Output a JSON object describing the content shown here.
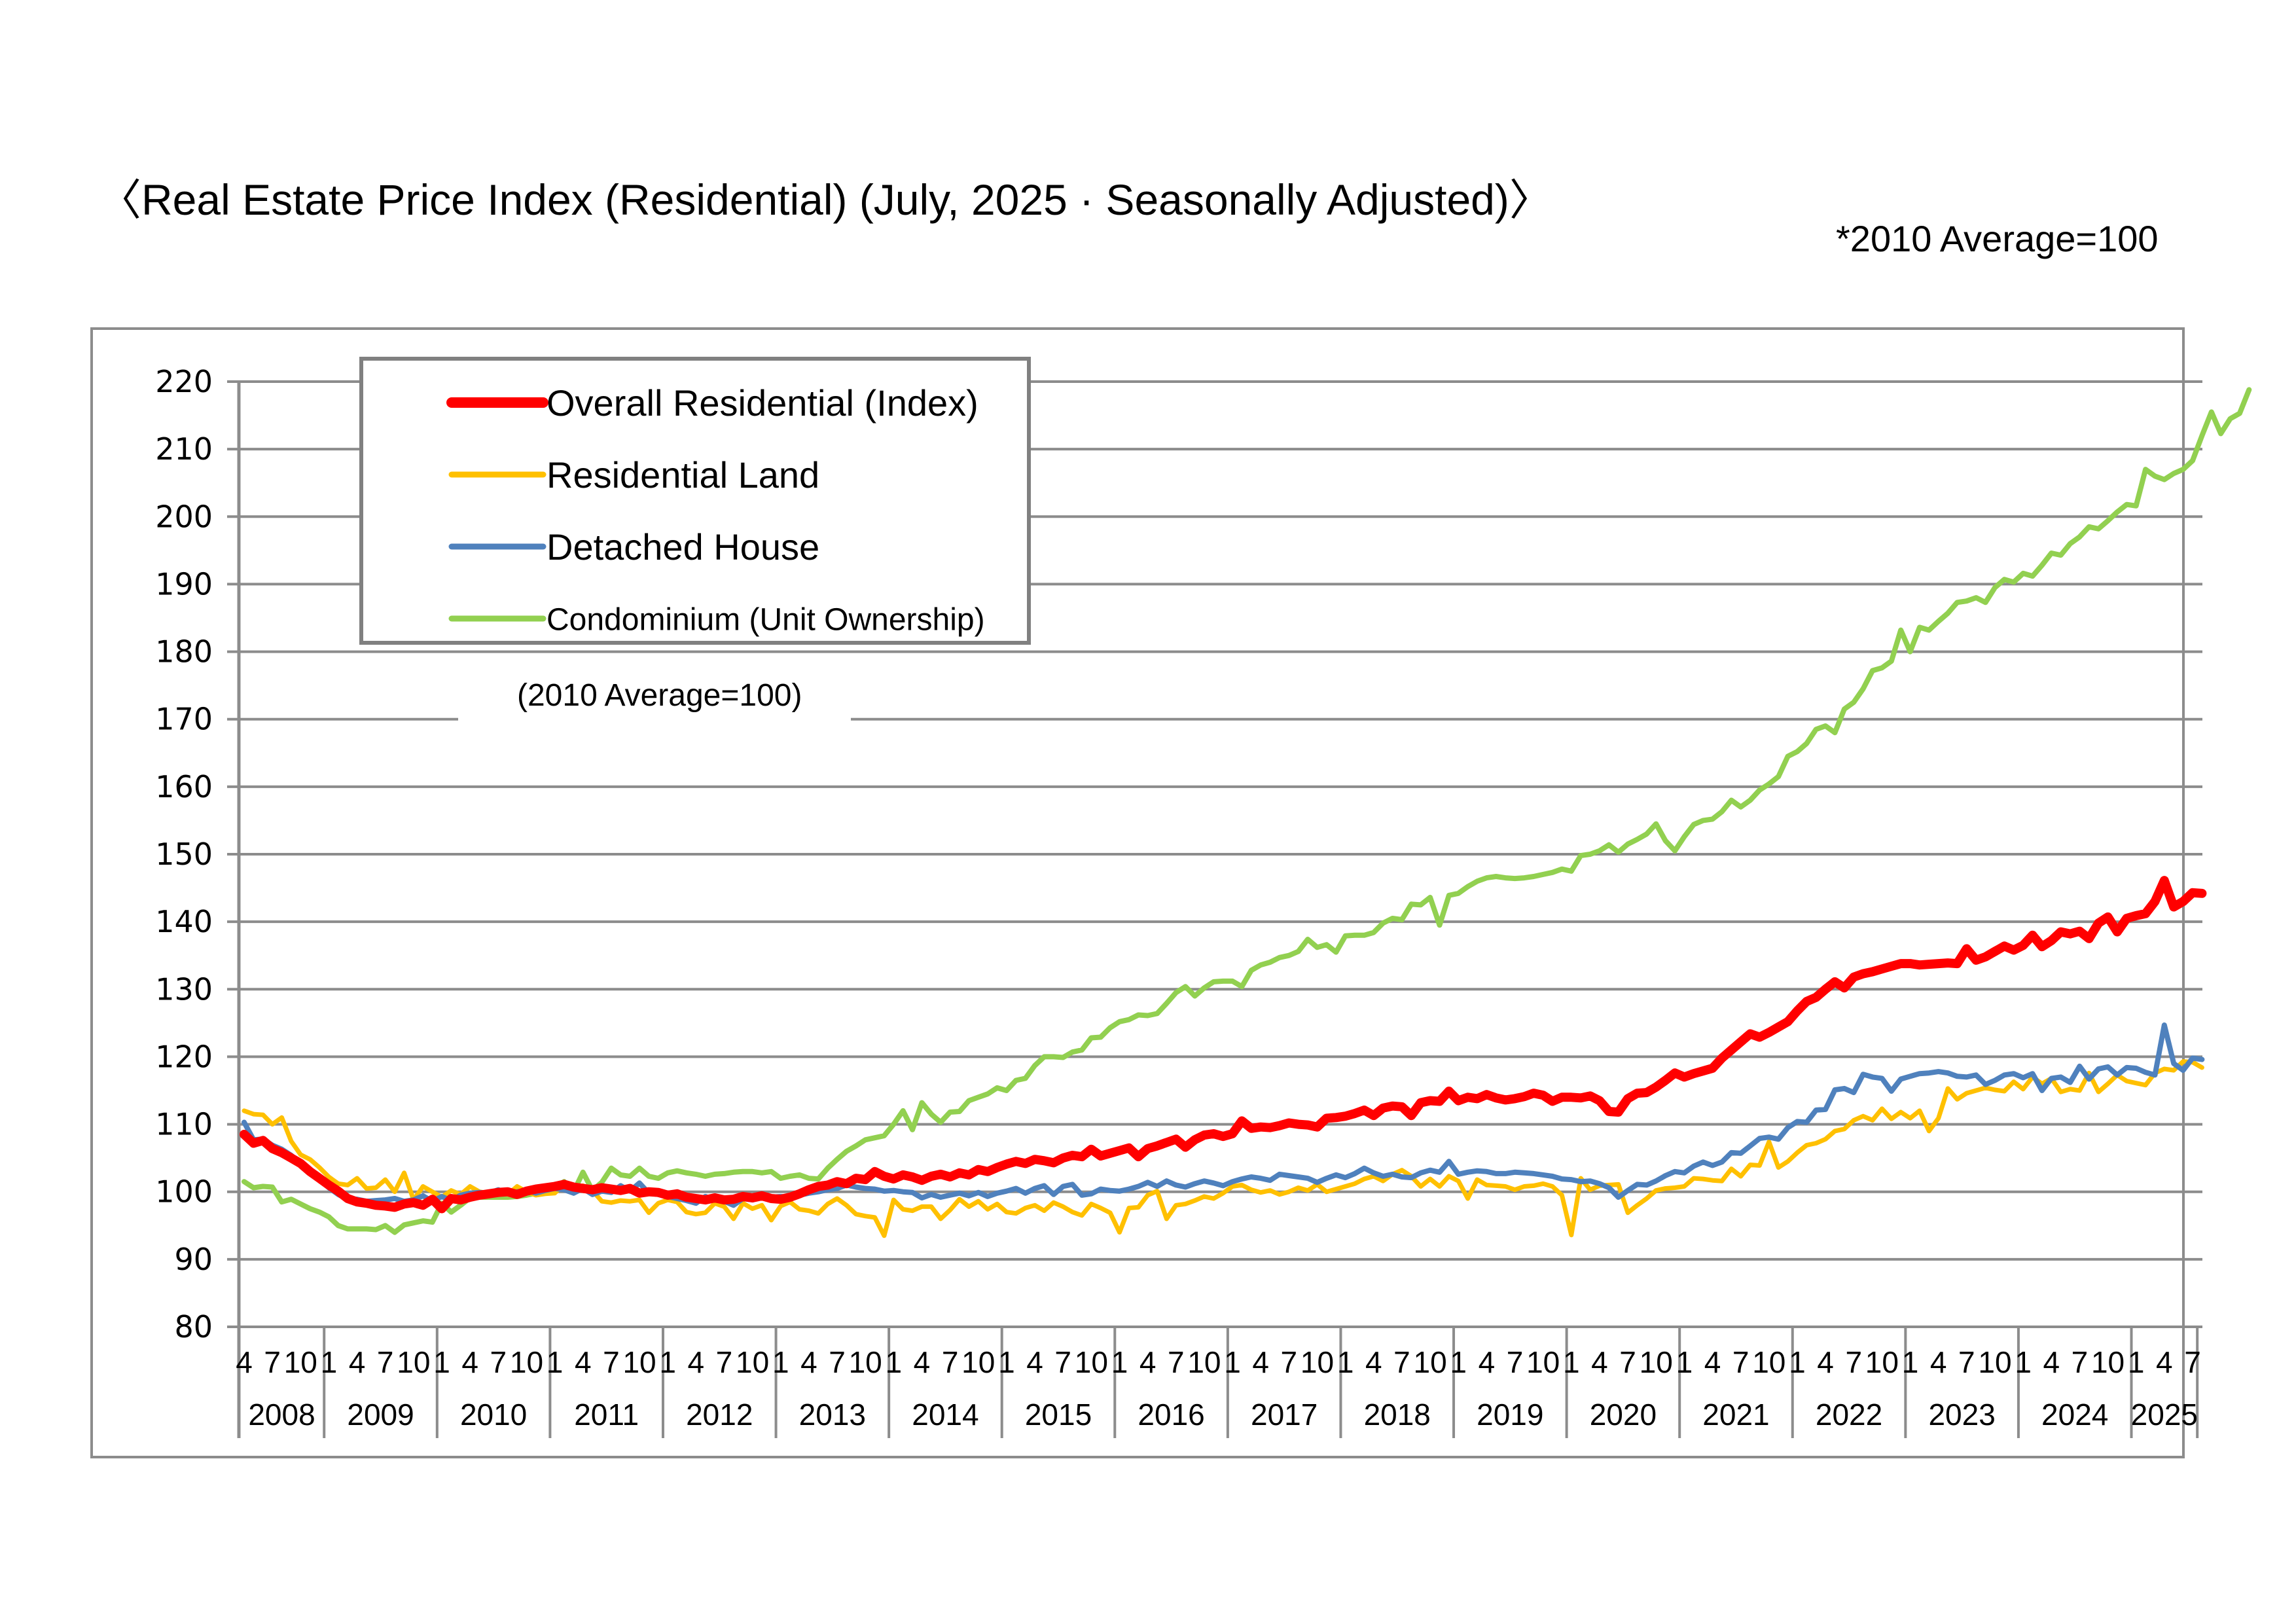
{
  "page": {
    "title": "〈Real Estate Price Index (Residential) (July, 2025 · Seasonally Adjusted)〉",
    "note": "*2010 Average=100"
  },
  "chart_data": {
    "type": "line",
    "title": "Real Estate Price Index (Residential) (July, 2025 · Seasonally Adjusted)",
    "subtitle": "*2010 Average=100",
    "annotation": "(2010 Average=100)",
    "xlabel": "",
    "ylabel": "",
    "ylim": [
      80,
      220
    ],
    "yticks": [
      80,
      90,
      100,
      110,
      120,
      130,
      140,
      150,
      160,
      170,
      180,
      190,
      200,
      210,
      220
    ],
    "grid": true,
    "legend_position": "top-left",
    "x_start": "2008-04",
    "x_end": "2025-07",
    "x_frequency": "monthly",
    "month_tick_labels": [
      "1",
      "4",
      "7",
      "10"
    ],
    "years": [
      "2008",
      "2009",
      "2010",
      "2011",
      "2012",
      "2013",
      "2014",
      "2015",
      "2016",
      "2017",
      "2018",
      "2019",
      "2020",
      "2021",
      "2022",
      "2023",
      "2024",
      "2025"
    ],
    "series": [
      {
        "name": "Overall Residential (Index)",
        "color": "#ff0000",
        "values": [
          108.5,
          107.2,
          107.6,
          106.4,
          105.8,
          105.0,
          104.2,
          103.0,
          102.0,
          101.0,
          100.1,
          99.0,
          98.5,
          98.3,
          98.0,
          97.9,
          97.7,
          98.2,
          98.4,
          98.0,
          98.9,
          97.5,
          99.0,
          98.8,
          99.2,
          99.5,
          99.7,
          99.9,
          100.0,
          99.6,
          100.1,
          100.4,
          100.6,
          100.8,
          101.1,
          100.7,
          100.5,
          100.3,
          100.6,
          100.4,
          100.2,
          100.5,
          99.8,
          100.0,
          99.9,
          99.5,
          99.7,
          99.2,
          99.0,
          98.8,
          99.1,
          98.8,
          98.9,
          99.3,
          99.1,
          99.4,
          99.0,
          98.9,
          99.2,
          99.7,
          100.3,
          100.8,
          101.0,
          101.5,
          101.2,
          102.0,
          101.8,
          103.0,
          102.3,
          101.9,
          102.5,
          102.2,
          101.7,
          102.3,
          102.6,
          102.2,
          102.8,
          102.5,
          103.3,
          103.0,
          103.6,
          104.1,
          104.5,
          104.2,
          104.8,
          104.6,
          104.3,
          105.0,
          105.4,
          105.2,
          106.3,
          105.3,
          105.7,
          106.1,
          106.5,
          105.2,
          106.4,
          106.8,
          107.3,
          107.8,
          106.6,
          107.7,
          108.4,
          108.6,
          108.2,
          108.6,
          110.5,
          109.4,
          109.6,
          109.5,
          109.8,
          110.2,
          110.0,
          109.9,
          109.6,
          110.9,
          111.0,
          111.2,
          111.6,
          112.1,
          111.3,
          112.4,
          112.7,
          112.6,
          111.3,
          113.2,
          113.5,
          113.4,
          114.9,
          113.5,
          114.0,
          113.8,
          114.4,
          113.9,
          113.6,
          113.8,
          114.1,
          114.6,
          114.3,
          113.4,
          114.0,
          114.0,
          113.9,
          114.2,
          113.5,
          111.9,
          111.8,
          113.8,
          114.6,
          114.7,
          115.5,
          116.5,
          117.6,
          117.0,
          117.5,
          117.9,
          118.3,
          119.8,
          121.0,
          122.2,
          123.4,
          122.9,
          123.6,
          124.4,
          125.2,
          126.8,
          128.2,
          128.8,
          130.0,
          131.1,
          130.2,
          131.8,
          132.3,
          132.6,
          133.0,
          133.4,
          133.8,
          133.8,
          133.6,
          133.7,
          133.8,
          133.9,
          133.8,
          136.0,
          134.3,
          134.8,
          135.6,
          136.4,
          135.8,
          136.5,
          138.0,
          136.3,
          137.2,
          138.5,
          138.2,
          138.6,
          137.5,
          139.8,
          140.7,
          138.5,
          140.5,
          140.9,
          141.2,
          143.0,
          146.1,
          142.2,
          143.0,
          144.3,
          144.2
        ]
      },
      {
        "name": "Residential Land",
        "color": "#ffc000",
        "values": [
          112.0,
          111.5,
          111.4,
          110.0,
          111.0,
          107.5,
          105.5,
          104.8,
          103.6,
          102.2,
          101.2,
          101.0,
          102.0,
          100.5,
          100.6,
          101.8,
          100.0,
          102.8,
          98.8,
          100.8,
          100.0,
          99.2,
          100.2,
          99.6,
          100.8,
          100.0,
          99.8,
          100.2,
          99.6,
          100.8,
          100.0,
          99.5,
          99.7,
          99.8,
          101.2,
          100.6,
          100.9,
          100.2,
          98.6,
          98.4,
          98.7,
          98.6,
          98.8,
          96.9,
          98.3,
          98.8,
          98.5,
          97.0,
          96.7,
          96.9,
          98.3,
          97.8,
          96.0,
          98.3,
          97.5,
          98.0,
          95.8,
          97.9,
          98.5,
          97.4,
          97.2,
          96.8,
          98.2,
          99.0,
          98.0,
          96.7,
          96.4,
          96.2,
          93.5,
          98.8,
          97.4,
          97.2,
          97.8,
          97.8,
          96.0,
          97.3,
          98.9,
          97.8,
          98.6,
          97.4,
          98.2,
          97.0,
          96.8,
          97.6,
          98.0,
          97.2,
          98.4,
          97.8,
          97.0,
          96.5,
          98.2,
          97.6,
          96.9,
          94.0,
          97.6,
          97.7,
          99.5,
          100.1,
          96.0,
          98.0,
          98.2,
          98.7,
          99.3,
          99.0,
          99.8,
          100.8,
          101.0,
          100.3,
          99.9,
          100.2,
          99.6,
          100.0,
          100.6,
          100.2,
          101.1,
          100.0,
          100.4,
          100.8,
          101.2,
          101.9,
          102.3,
          101.6,
          102.6,
          103.2,
          102.3,
          100.8,
          101.9,
          100.8,
          102.3,
          101.6,
          99.0,
          101.8,
          101.0,
          100.9,
          100.8,
          100.3,
          100.8,
          100.9,
          101.2,
          100.8,
          99.5,
          93.6,
          102.0,
          100.3,
          100.9,
          101.0,
          101.1,
          96.9,
          98.0,
          99.0,
          100.2,
          100.5,
          100.6,
          100.8,
          102.0,
          101.9,
          101.7,
          101.6,
          103.4,
          102.3,
          104.0,
          103.9,
          107.4,
          103.6,
          104.5,
          105.8,
          106.9,
          107.2,
          107.8,
          109.0,
          109.3,
          110.6,
          111.2,
          110.6,
          112.3,
          110.8,
          111.8,
          110.9,
          112.0,
          109.0,
          110.9,
          115.3,
          113.7,
          114.6,
          115.0,
          115.4,
          115.1,
          114.9,
          116.3,
          115.2,
          117.0,
          116.0,
          116.8,
          114.8,
          115.2,
          115.0,
          117.6,
          114.8,
          116.0,
          117.3,
          116.4,
          116.1,
          115.8,
          117.6,
          118.2,
          118.0,
          119.3,
          119.2,
          118.4
        ]
      },
      {
        "name": "Detached House",
        "color": "#4f81bd",
        "values": [
          110.3,
          107.7,
          107.8,
          106.9,
          106.3,
          105.4,
          104.2,
          103.0,
          102.0,
          100.6,
          99.6,
          98.9,
          98.9,
          98.6,
          98.7,
          98.8,
          99.0,
          98.6,
          98.8,
          99.4,
          98.6,
          99.3,
          98.7,
          99.5,
          99.8,
          99.9,
          99.8,
          100.3,
          99.7,
          100.0,
          100.2,
          99.8,
          100.2,
          100.5,
          100.3,
          99.8,
          100.5,
          99.6,
          100.1,
          99.9,
          100.9,
          100.1,
          101.3,
          99.8,
          99.6,
          99.3,
          99.0,
          98.7,
          98.3,
          99.3,
          98.8,
          98.6,
          98.0,
          99.0,
          98.8,
          99.6,
          99.2,
          99.3,
          99.2,
          99.5,
          99.8,
          100.0,
          100.3,
          100.5,
          101.0,
          100.7,
          100.5,
          100.4,
          100.1,
          100.2,
          100.0,
          99.9,
          99.1,
          99.6,
          99.2,
          99.5,
          99.8,
          99.4,
          99.9,
          99.3,
          99.8,
          100.1,
          100.5,
          99.8,
          100.5,
          100.9,
          99.6,
          100.8,
          101.1,
          99.5,
          99.7,
          100.4,
          100.2,
          100.1,
          100.4,
          100.8,
          101.4,
          100.8,
          101.6,
          101.0,
          100.7,
          101.2,
          101.6,
          101.3,
          100.9,
          101.5,
          101.9,
          102.2,
          102.0,
          101.7,
          102.6,
          102.4,
          102.2,
          102.0,
          101.4,
          102.0,
          102.5,
          102.1,
          102.7,
          103.5,
          102.8,
          102.3,
          102.6,
          102.2,
          102.1,
          102.8,
          103.2,
          102.9,
          104.5,
          102.6,
          102.9,
          103.1,
          103.0,
          102.7,
          102.7,
          102.9,
          102.8,
          102.7,
          102.5,
          102.3,
          101.9,
          101.8,
          101.5,
          101.6,
          101.2,
          100.6,
          99.2,
          100.2,
          101.1,
          101.0,
          101.6,
          102.4,
          103.0,
          102.8,
          103.8,
          104.4,
          103.9,
          104.4,
          105.8,
          105.7,
          106.8,
          107.9,
          108.1,
          107.8,
          109.5,
          110.4,
          110.3,
          112.1,
          112.2,
          115.1,
          115.3,
          114.7,
          117.4,
          117.0,
          116.8,
          114.9,
          116.7,
          117.1,
          117.5,
          117.6,
          117.8,
          117.6,
          117.1,
          117.0,
          117.3,
          115.9,
          116.5,
          117.3,
          117.5,
          116.9,
          117.5,
          115.0,
          116.8,
          117.0,
          116.2,
          118.6,
          116.7,
          118.2,
          118.5,
          117.3,
          118.4,
          118.3,
          117.7,
          117.3,
          124.7,
          119.0,
          118.0,
          119.8,
          119.6
        ]
      },
      {
        "name": "Condominium (Unit Ownership)",
        "color": "#92d050",
        "values": [
          101.5,
          100.6,
          100.8,
          100.7,
          98.5,
          98.9,
          98.2,
          97.5,
          97.0,
          96.3,
          95.0,
          94.5,
          94.5,
          94.5,
          94.4,
          95.0,
          94.0,
          95.1,
          95.4,
          95.7,
          95.5,
          98.3,
          97.0,
          98.0,
          99.1,
          99.2,
          99.2,
          99.2,
          99.2,
          99.3,
          99.5,
          99.8,
          100.2,
          100.7,
          101.5,
          100.0,
          102.9,
          100.2,
          101.4,
          103.5,
          102.5,
          102.3,
          103.5,
          102.3,
          102.0,
          102.8,
          103.1,
          102.8,
          102.6,
          102.3,
          102.6,
          102.7,
          102.9,
          103.0,
          103.0,
          102.8,
          103.0,
          102.0,
          102.3,
          102.5,
          102.0,
          101.9,
          103.5,
          104.8,
          106.0,
          106.8,
          107.7,
          108.0,
          108.3,
          110.0,
          112.0,
          109.2,
          113.2,
          111.5,
          110.3,
          111.8,
          111.9,
          113.5,
          114.0,
          114.5,
          115.4,
          115.0,
          116.5,
          116.8,
          118.7,
          120.0,
          120.0,
          119.9,
          120.7,
          121.0,
          122.8,
          122.9,
          124.3,
          125.2,
          125.5,
          126.2,
          126.1,
          126.4,
          127.9,
          129.5,
          130.4,
          129.0,
          130.2,
          131.1,
          131.2,
          131.2,
          130.4,
          132.8,
          133.6,
          134.0,
          134.7,
          135.0,
          135.6,
          137.4,
          136.2,
          136.6,
          135.5,
          137.9,
          138.0,
          138.0,
          138.4,
          139.8,
          140.5,
          140.3,
          142.6,
          142.5,
          143.6,
          139.5,
          143.9,
          144.2,
          145.2,
          146.0,
          146.5,
          146.7,
          146.5,
          146.4,
          146.5,
          146.7,
          147.0,
          147.3,
          147.8,
          147.5,
          149.8,
          150.0,
          150.5,
          151.4,
          150.3,
          151.5,
          152.2,
          153.0,
          154.5,
          152.0,
          150.5,
          152.6,
          154.4,
          155.0,
          155.2,
          156.3,
          158.0,
          157.0,
          158.0,
          159.5,
          160.4,
          161.5,
          164.5,
          165.2,
          166.4,
          168.5,
          169.0,
          168.0,
          171.5,
          172.5,
          174.5,
          177.2,
          177.6,
          178.6,
          183.2,
          180.0,
          183.6,
          183.2,
          184.5,
          185.7,
          187.3,
          187.5,
          188.0,
          187.3,
          189.5,
          190.7,
          190.3,
          191.6,
          191.2,
          192.8,
          194.6,
          194.3,
          196.0,
          197.0,
          198.5,
          198.2,
          199.4,
          200.7,
          201.8,
          201.6,
          207.0,
          206.0,
          205.5,
          206.4,
          207.0,
          208.3,
          212.0,
          215.5,
          212.3,
          214.5,
          215.3,
          218.8
        ]
      }
    ]
  }
}
